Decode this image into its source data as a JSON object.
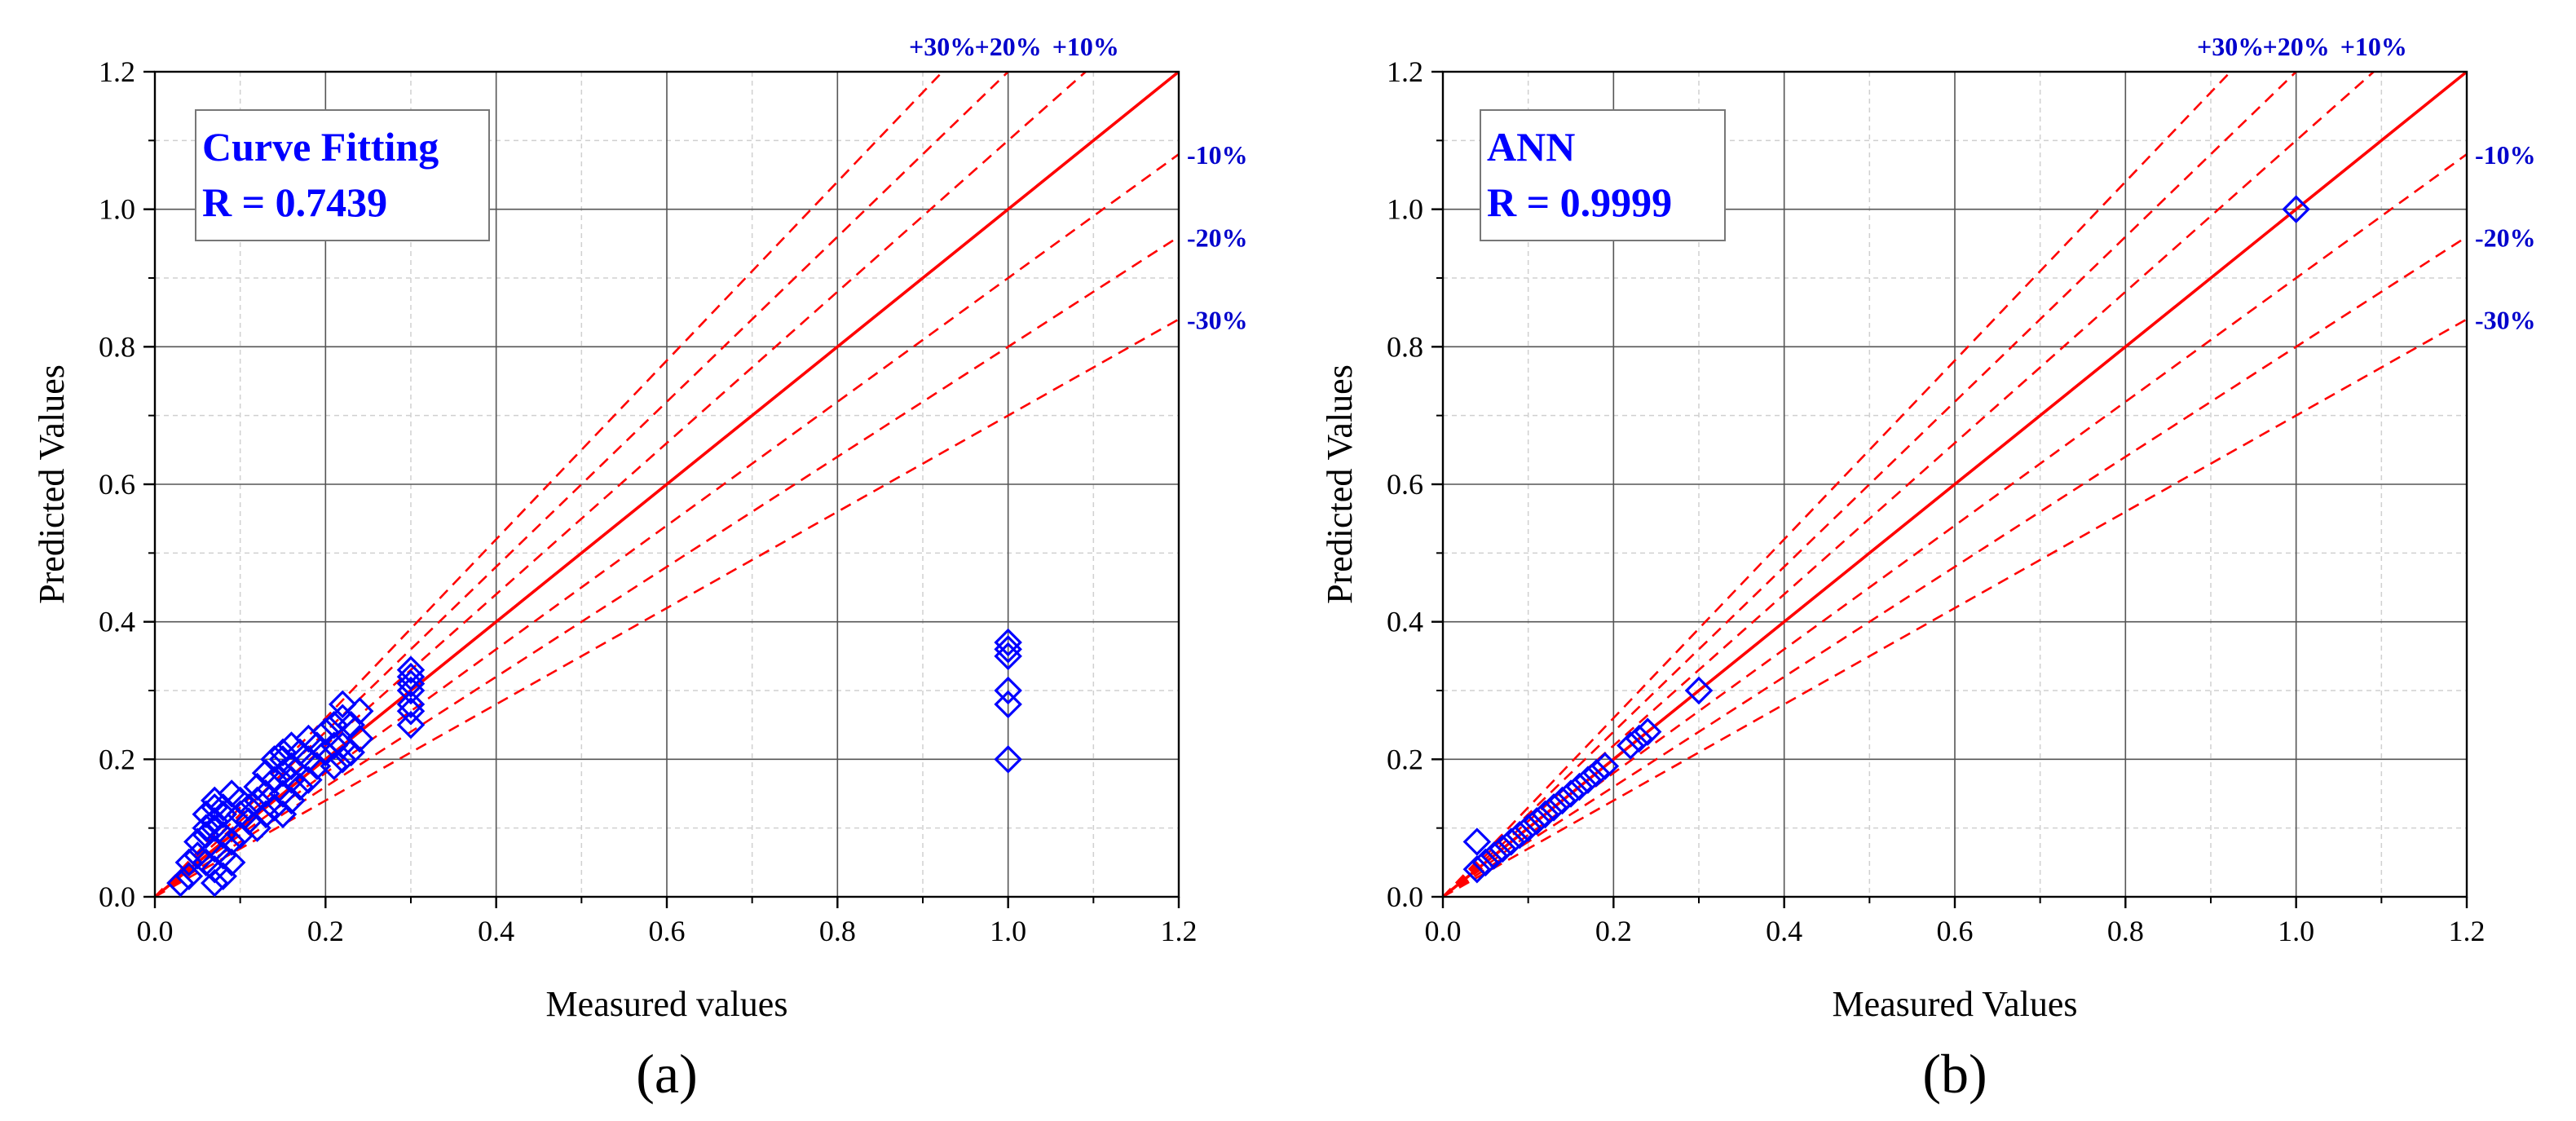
{
  "colors": {
    "identity": "#ff0000",
    "bands": "#ff0000",
    "markers": "#0000ff",
    "band_labels": "#0000cc",
    "stats_text": "#0000ff",
    "grid_major": "#555555",
    "grid_minor": "#d0d0d0",
    "axis": "#000000"
  },
  "chart_data": [
    {
      "type": "scatter",
      "panel_label": "(a)",
      "xlabel": "Measured values",
      "ylabel": "Predicted Values",
      "xlim": [
        0,
        1.2
      ],
      "ylim": [
        0,
        1.2
      ],
      "major_ticks": [
        0.0,
        0.2,
        0.4,
        0.6,
        0.8,
        1.0,
        1.2
      ],
      "tick_labels": [
        "0.0",
        "0.2",
        "0.4",
        "0.6",
        "0.8",
        "1.0",
        "1.2"
      ],
      "grid": true,
      "stats_box": {
        "title": "Curve Fitting",
        "r_text": "R = 0.7439",
        "placement": "top-left"
      },
      "identity_line": {
        "slope": 1.0
      },
      "error_bands": [
        {
          "label": "+30%",
          "slope": 1.3
        },
        {
          "label": "+20%",
          "slope": 1.2
        },
        {
          "label": "+10%",
          "slope": 1.1
        },
        {
          "label": "-10%",
          "slope": 0.9
        },
        {
          "label": "-20%",
          "slope": 0.8
        },
        {
          "label": "-30%",
          "slope": 0.7
        }
      ],
      "points": {
        "x": [
          0.03,
          0.04,
          0.04,
          0.05,
          0.05,
          0.06,
          0.06,
          0.06,
          0.06,
          0.07,
          0.07,
          0.07,
          0.07,
          0.07,
          0.07,
          0.07,
          0.08,
          0.08,
          0.08,
          0.08,
          0.08,
          0.09,
          0.09,
          0.09,
          0.1,
          0.1,
          0.1,
          0.11,
          0.11,
          0.12,
          0.12,
          0.12,
          0.13,
          0.13,
          0.13,
          0.14,
          0.14,
          0.14,
          0.15,
          0.15,
          0.15,
          0.15,
          0.15,
          0.16,
          0.16,
          0.16,
          0.16,
          0.17,
          0.17,
          0.18,
          0.18,
          0.18,
          0.19,
          0.19,
          0.2,
          0.2,
          0.21,
          0.21,
          0.21,
          0.22,
          0.22,
          0.22,
          0.22,
          0.23,
          0.23,
          0.24,
          0.24,
          0.3,
          0.3,
          0.3,
          0.3,
          0.3,
          0.3,
          0.3,
          1.0,
          1.0,
          1.0,
          1.0,
          1.0,
          1.0
        ],
        "y": [
          0.02,
          0.05,
          0.03,
          0.06,
          0.08,
          0.05,
          0.09,
          0.1,
          0.12,
          0.02,
          0.04,
          0.07,
          0.1,
          0.11,
          0.13,
          0.14,
          0.03,
          0.06,
          0.09,
          0.12,
          0.13,
          0.05,
          0.08,
          0.15,
          0.09,
          0.12,
          0.14,
          0.11,
          0.13,
          0.1,
          0.14,
          0.16,
          0.12,
          0.15,
          0.18,
          0.13,
          0.17,
          0.2,
          0.12,
          0.15,
          0.18,
          0.2,
          0.21,
          0.14,
          0.17,
          0.19,
          0.22,
          0.16,
          0.21,
          0.17,
          0.2,
          0.23,
          0.19,
          0.22,
          0.21,
          0.24,
          0.19,
          0.22,
          0.25,
          0.2,
          0.22,
          0.26,
          0.28,
          0.21,
          0.25,
          0.23,
          0.27,
          0.25,
          0.27,
          0.28,
          0.3,
          0.31,
          0.32,
          0.33,
          0.2,
          0.28,
          0.3,
          0.35,
          0.36,
          0.37
        ]
      }
    },
    {
      "type": "scatter",
      "panel_label": "(b)",
      "xlabel": "Measured Values",
      "ylabel": "Predicted Values",
      "xlim": [
        0,
        1.2
      ],
      "ylim": [
        0,
        1.2
      ],
      "major_ticks": [
        0.0,
        0.2,
        0.4,
        0.6,
        0.8,
        1.0,
        1.2
      ],
      "tick_labels": [
        "0.0",
        "0.2",
        "0.4",
        "0.6",
        "0.8",
        "1.0",
        "1.2"
      ],
      "grid": true,
      "stats_box": {
        "title": "ANN",
        "r_text": "R = 0.9999",
        "placement": "top-left"
      },
      "identity_line": {
        "slope": 1.0
      },
      "error_bands": [
        {
          "label": "+30%",
          "slope": 1.3
        },
        {
          "label": "+20%",
          "slope": 1.2
        },
        {
          "label": "+10%",
          "slope": 1.1
        },
        {
          "label": "-10%",
          "slope": 0.9
        },
        {
          "label": "-20%",
          "slope": 0.8
        },
        {
          "label": "-30%",
          "slope": 0.7
        }
      ],
      "points": {
        "x": [
          0.04,
          0.04,
          0.05,
          0.06,
          0.07,
          0.08,
          0.09,
          0.1,
          0.11,
          0.12,
          0.13,
          0.14,
          0.15,
          0.16,
          0.17,
          0.18,
          0.19,
          0.22,
          0.23,
          0.24,
          0.3,
          1.0
        ],
        "y": [
          0.04,
          0.08,
          0.05,
          0.06,
          0.07,
          0.08,
          0.09,
          0.1,
          0.11,
          0.12,
          0.13,
          0.14,
          0.15,
          0.16,
          0.17,
          0.18,
          0.19,
          0.22,
          0.23,
          0.24,
          0.3,
          1.0
        ]
      }
    }
  ]
}
